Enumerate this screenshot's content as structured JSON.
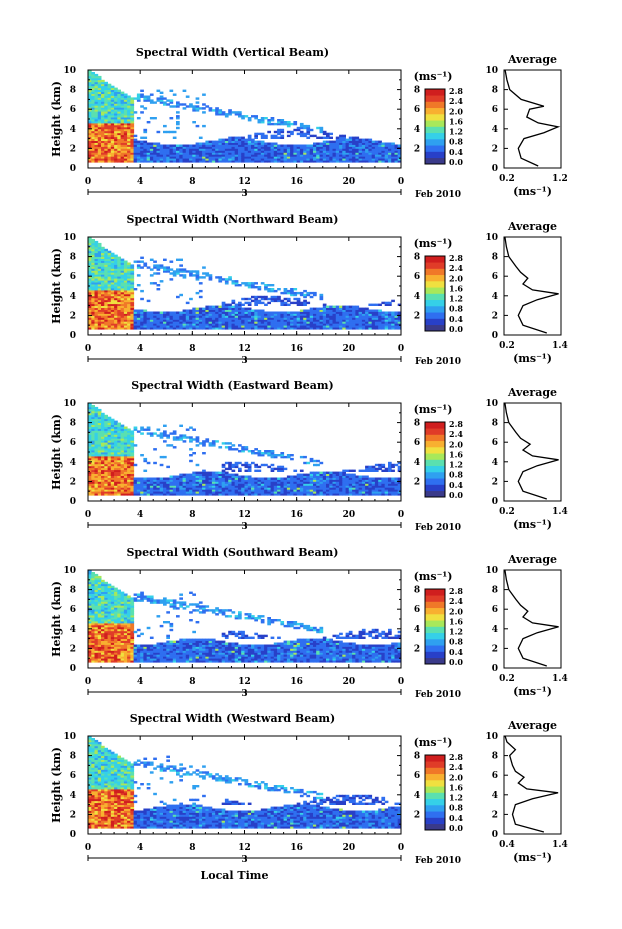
{
  "colorbar": {
    "unit": "(ms⁻¹)",
    "ticks": [
      "2.8",
      "2.4",
      "2.0",
      "1.6",
      "1.2",
      "0.8",
      "0.4",
      "0.0"
    ],
    "colors": [
      "#3a3a8a",
      "#2840c8",
      "#2f6ff0",
      "#2fa0f0",
      "#35d0e8",
      "#5ae0b0",
      "#a8e85a",
      "#f0e040",
      "#f8b030",
      "#f07828",
      "#e03c28",
      "#d01e1e"
    ],
    "range": [
      0,
      3.0
    ]
  },
  "axes": {
    "height_label": "Height (km)",
    "height_ticks": [
      "0",
      "2",
      "4",
      "6",
      "8",
      "10"
    ],
    "time_ticks": [
      "0",
      "4",
      "8",
      "12",
      "16",
      "20",
      "0"
    ],
    "date_marker": "3",
    "date_right": "Feb 2010",
    "xlabel": "Local Time",
    "avg_title": "Average",
    "avg_unit": "(ms⁻¹)"
  },
  "chart_data": [
    {
      "type": "heatmap",
      "title": "Spectral Width (Vertical Beam)",
      "x_range_hours": [
        0,
        24
      ],
      "y_range_km": [
        0,
        10
      ],
      "profile": {
        "type": "line",
        "xlim": [
          0.2,
          1.2
        ],
        "xticks": [
          "0.2",
          "1.2"
        ],
        "height_km": [
          0.2,
          1,
          2,
          3,
          3.6,
          4.2,
          4.6,
          5.2,
          6,
          6.3,
          7,
          8,
          9,
          10
        ],
        "values": [
          0.8,
          0.5,
          0.45,
          0.55,
          0.9,
          1.15,
          0.8,
          0.6,
          0.65,
          0.9,
          0.5,
          0.3,
          0.25,
          0.22
        ]
      }
    },
    {
      "type": "heatmap",
      "title": "Spectral Width (Northward Beam)",
      "x_range_hours": [
        0,
        24
      ],
      "y_range_km": [
        0,
        10
      ],
      "profile": {
        "type": "line",
        "xlim": [
          0.2,
          1.4
        ],
        "xticks": [
          "0.2",
          "1.4"
        ],
        "height_km": [
          0.2,
          1,
          2,
          3,
          3.6,
          4.2,
          4.6,
          5.2,
          5.8,
          6.4,
          7,
          8,
          9,
          10
        ],
        "values": [
          1.1,
          0.6,
          0.5,
          0.6,
          0.9,
          1.35,
          0.8,
          0.6,
          0.7,
          0.55,
          0.45,
          0.3,
          0.25,
          0.22
        ]
      }
    },
    {
      "type": "heatmap",
      "title": "Spectral Width (Eastward Beam)",
      "x_range_hours": [
        0,
        24
      ],
      "y_range_km": [
        0,
        10
      ],
      "profile": {
        "type": "line",
        "xlim": [
          0.2,
          1.4
        ],
        "xticks": [
          "0.2",
          "1.4"
        ],
        "height_km": [
          0.2,
          1,
          2,
          3,
          3.6,
          4.2,
          4.6,
          5.2,
          5.8,
          6.4,
          7,
          8,
          9,
          10
        ],
        "values": [
          1.1,
          0.6,
          0.5,
          0.6,
          0.9,
          1.35,
          0.8,
          0.6,
          0.75,
          0.55,
          0.45,
          0.3,
          0.25,
          0.22
        ]
      }
    },
    {
      "type": "heatmap",
      "title": "Spectral Width (Southward Beam)",
      "x_range_hours": [
        0,
        24
      ],
      "y_range_km": [
        0,
        10
      ],
      "profile": {
        "type": "line",
        "xlim": [
          0.2,
          1.4
        ],
        "xticks": [
          "0.2",
          "1.4"
        ],
        "height_km": [
          0.2,
          1,
          2,
          3,
          3.6,
          4.2,
          4.6,
          5.2,
          5.8,
          6.4,
          7,
          8,
          9,
          10
        ],
        "values": [
          1.1,
          0.6,
          0.5,
          0.6,
          0.9,
          1.35,
          0.8,
          0.6,
          0.7,
          0.55,
          0.45,
          0.3,
          0.25,
          0.22
        ]
      }
    },
    {
      "type": "heatmap",
      "title": "Spectral Width (Westward Beam)",
      "x_range_hours": [
        0,
        24
      ],
      "y_range_km": [
        0,
        10
      ],
      "profile": {
        "type": "line",
        "xlim": [
          0.4,
          1.4
        ],
        "xticks": [
          "0.4",
          "1.4"
        ],
        "height_km": [
          0.2,
          1,
          2,
          3,
          3.6,
          4.2,
          4.6,
          5.2,
          5.8,
          6.4,
          7,
          8,
          8.6,
          9.4,
          10
        ],
        "values": [
          1.1,
          0.6,
          0.55,
          0.6,
          0.9,
          1.35,
          0.8,
          0.65,
          0.75,
          0.6,
          0.55,
          0.5,
          0.6,
          0.45,
          0.42
        ]
      }
    }
  ]
}
